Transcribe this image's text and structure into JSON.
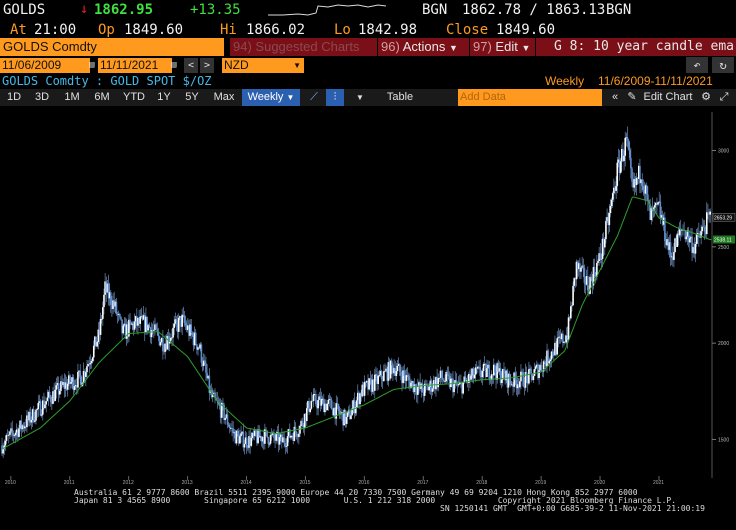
{
  "quote": {
    "ticker": "GOLDS",
    "last": "1862.95",
    "change": "+13.35",
    "source1": "BGN",
    "bid_ask": "1862.78 / 1863.13",
    "source2": "BGN",
    "at_label": "At",
    "at_time": "21:00",
    "op_label": "Op",
    "open": "1849.60",
    "hi_label": "Hi",
    "high": "1866.02",
    "lo_label": "Lo",
    "low": "1842.98",
    "close_label": "Close",
    "close": "1849.60"
  },
  "command": {
    "security": "GOLDS Comdty",
    "suggested_num": "94)",
    "suggested_label": "Suggested Charts",
    "actions_num": "96)",
    "actions_label": "Actions",
    "edit_num": "97)",
    "edit_label": "Edit",
    "chart_title": "G 8: 10 year candle ema"
  },
  "dates": {
    "start": "11/06/2009",
    "end": "11/11/2021",
    "currency": "NZD"
  },
  "legend": {
    "security_desc": "GOLDS Comdty : GOLD SPOT $/OZ",
    "period": "Weekly",
    "range": "11/6/2009-11/11/2021"
  },
  "toolbar": {
    "ranges": [
      "1D",
      "3D",
      "1M",
      "6M",
      "YTD",
      "1Y",
      "5Y",
      "Max"
    ],
    "frequency": "Weekly",
    "table_label": "Table",
    "add_data_placeholder": "Add Data",
    "edit_chart_label": "Edit Chart"
  },
  "chart_data": {
    "type": "candlestick",
    "frequency": "weekly",
    "x_ticks": [
      "2010",
      "2011",
      "2012",
      "2013",
      "2014",
      "2015",
      "2016",
      "2017",
      "2018",
      "2019",
      "2020",
      "2021"
    ],
    "y_ticks": [
      1500,
      2000,
      2500,
      3000
    ],
    "ylim": [
      1300,
      3200
    ],
    "last_price_label": "2653.29",
    "ema_label": "2538.11",
    "series": [
      {
        "name": "price",
        "x": [
          2009.85,
          2010.0,
          2010.3,
          2010.6,
          2010.9,
          2011.2,
          2011.5,
          2011.6,
          2011.75,
          2011.9,
          2012.1,
          2012.3,
          2012.6,
          2012.9,
          2013.2,
          2013.4,
          2013.6,
          2013.8,
          2014.0,
          2014.3,
          2014.6,
          2014.9,
          2015.1,
          2015.4,
          2015.7,
          2015.95,
          2016.2,
          2016.5,
          2016.8,
          2017.0,
          2017.3,
          2017.6,
          2017.9,
          2018.2,
          2018.5,
          2018.8,
          2019.0,
          2019.2,
          2019.45,
          2019.6,
          2019.8,
          2020.0,
          2020.15,
          2020.3,
          2020.45,
          2020.55,
          2020.7,
          2020.85,
          2021.0,
          2021.2,
          2021.4,
          2021.6,
          2021.86
        ],
        "values": [
          1470,
          1520,
          1600,
          1700,
          1780,
          1820,
          2040,
          2280,
          2200,
          2050,
          2100,
          2100,
          2000,
          2120,
          1980,
          1720,
          1640,
          1520,
          1490,
          1520,
          1490,
          1560,
          1700,
          1680,
          1600,
          1750,
          1800,
          1880,
          1790,
          1750,
          1820,
          1770,
          1840,
          1860,
          1800,
          1820,
          1880,
          1960,
          2050,
          2400,
          2300,
          2440,
          2650,
          2900,
          3050,
          2780,
          2900,
          2650,
          2700,
          2450,
          2600,
          2500,
          2653
        ]
      },
      {
        "name": "ema",
        "x": [
          2009.85,
          2010.5,
          2011.0,
          2011.5,
          2012.0,
          2012.5,
          2013.0,
          2013.5,
          2014.0,
          2014.5,
          2015.0,
          2015.5,
          2016.0,
          2016.5,
          2017.0,
          2017.5,
          2018.0,
          2018.5,
          2019.0,
          2019.4,
          2019.7,
          2020.0,
          2020.3,
          2020.55,
          2020.8,
          2021.0,
          2021.3,
          2021.6,
          2021.86
        ],
        "values": [
          1450,
          1560,
          1700,
          1900,
          2050,
          2060,
          1930,
          1700,
          1560,
          1530,
          1560,
          1620,
          1680,
          1760,
          1780,
          1790,
          1810,
          1820,
          1850,
          1960,
          2200,
          2380,
          2560,
          2760,
          2740,
          2650,
          2600,
          2570,
          2538
        ]
      }
    ]
  },
  "footer": {
    "line1": "Australia 61 2 9777 8600 Brazil 5511 2395 9000 Europe 44 20 7330 7500 Germany 49 69 9204 1210 Hong Kong 852 2977 6000",
    "line2": "Japan 81 3 4565 8900       Singapore 65 6212 1000       U.S. 1 212 318 2000             Copyright 2021 Bloomberg Finance L.P.",
    "line3": "SN 1250141 GMT  GMT+0:00 G685-39-2 11-Nov-2021 21:00:19"
  },
  "colors": {
    "accent": "#ff9a1f",
    "up_green": "#3fe03f",
    "down_red": "#e02020",
    "candle": "#8fb6e8",
    "ema": "#2e9e2e",
    "menu_red": "#7a0f17"
  }
}
